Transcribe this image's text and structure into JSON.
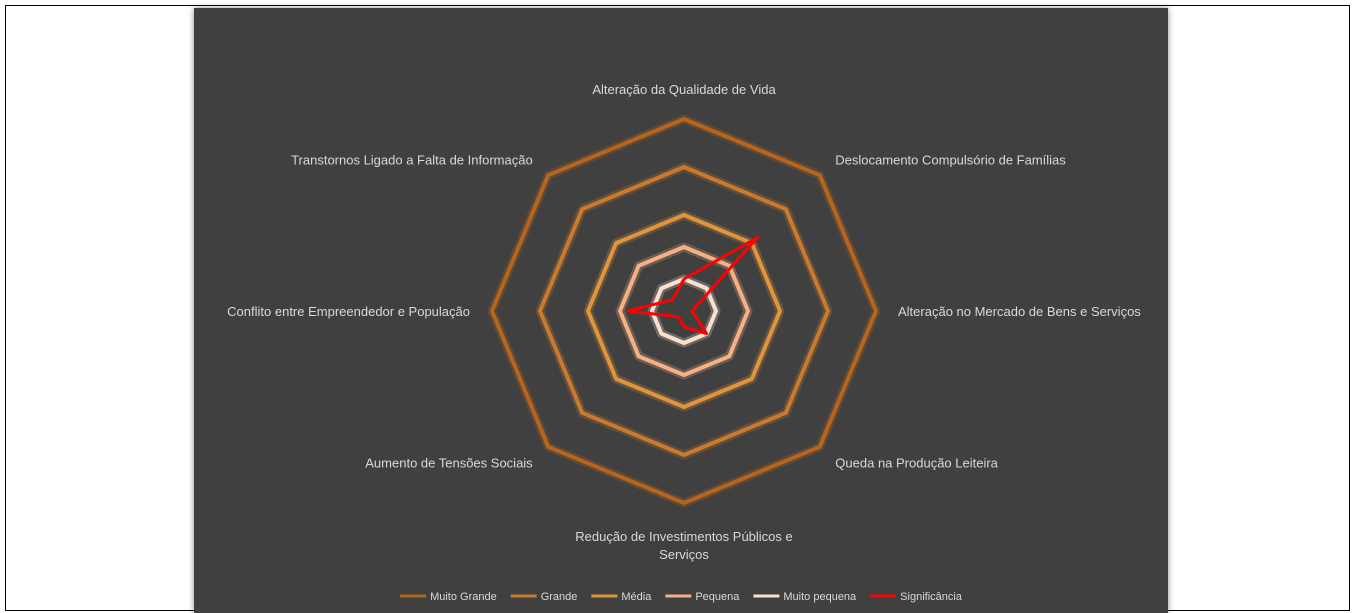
{
  "chart_data": {
    "type": "radar",
    "title": "",
    "categories": [
      "Alteração da Qualidade de Vida",
      "Deslocamento Compulsório de Famílias",
      "Alteração no Mercado de Bens e Serviços",
      "Queda na Produção Leiteira",
      "Redução de Investimentos Públicos e Serviços",
      "Aumento de Tensões Sociais",
      "Conflito entre Empreendedor e População",
      "Transtornos Ligado a Falta de Informação"
    ],
    "category_lines": [
      [
        "Alteração da Qualidade de Vida"
      ],
      [
        "Deslocamento Compulsório de Famílias"
      ],
      [
        "Alteração no Mercado de Bens e Serviços"
      ],
      [
        "Queda na Produção Leiteira"
      ],
      [
        "Redução de Investimentos Públicos e",
        "Serviços"
      ],
      [
        "Aumento de Tensões Sociais"
      ],
      [
        "Conflito entre Empreendedor e População"
      ],
      [
        "Transtornos Ligado a Falta de Informação"
      ]
    ],
    "rmax": 120,
    "series": [
      {
        "name": "Muito Grande",
        "color": "#b5651d",
        "values": [
          120,
          120,
          120,
          120,
          120,
          120,
          120,
          120
        ]
      },
      {
        "name": "Grande",
        "color": "#c97a2c",
        "values": [
          90,
          90,
          90,
          90,
          90,
          90,
          90,
          90
        ]
      },
      {
        "name": "Média",
        "color": "#e0943b",
        "values": [
          60,
          60,
          60,
          60,
          60,
          60,
          60,
          60
        ]
      },
      {
        "name": "Pequena",
        "color": "#f4b183",
        "values": [
          40,
          40,
          40,
          40,
          40,
          40,
          40,
          40
        ]
      },
      {
        "name": "Muito pequena",
        "color": "#fbe0cf",
        "values": [
          20,
          20,
          20,
          20,
          20,
          20,
          20,
          20
        ]
      },
      {
        "name": "Significância",
        "color": "#ff0000",
        "values": [
          20,
          65,
          5,
          20,
          10,
          5,
          35,
          10
        ]
      }
    ],
    "legend_position": "bottom",
    "grid": false
  }
}
